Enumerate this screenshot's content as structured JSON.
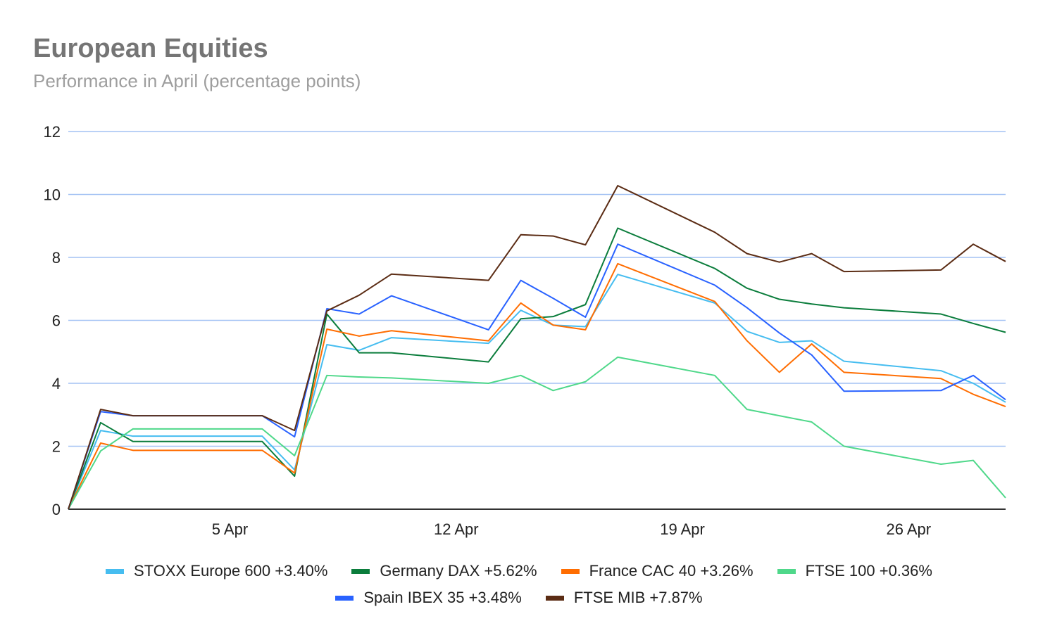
{
  "chart_data": {
    "type": "line",
    "title": "European Equities",
    "subtitle": "Performance in April (percentage points)",
    "xlabel": "",
    "ylabel": "",
    "ylim": [
      0,
      12
    ],
    "yticks": [
      0,
      2,
      4,
      6,
      8,
      10,
      12
    ],
    "grid": true,
    "legend_position": "bottom",
    "x_unit": "days since 31 Mar",
    "x": [
      0,
      1,
      2,
      6,
      7,
      8,
      9,
      10,
      13,
      14,
      15,
      16,
      17,
      20,
      21,
      22,
      23,
      24,
      27,
      28,
      29
    ],
    "xticks": [
      {
        "value": 5,
        "label": "5 Apr"
      },
      {
        "value": 12,
        "label": "12 Apr"
      },
      {
        "value": 19,
        "label": "19 Apr"
      },
      {
        "value": 26,
        "label": "26 Apr"
      }
    ],
    "series": [
      {
        "name": "STOXX Europe 600 +3.40%",
        "color": "#46bdf0",
        "values": [
          0,
          2.5,
          2.32,
          2.32,
          1.25,
          5.23,
          5.05,
          5.45,
          5.27,
          6.32,
          5.85,
          5.8,
          7.46,
          6.55,
          5.65,
          5.3,
          5.35,
          4.7,
          4.4,
          4.0,
          3.4
        ]
      },
      {
        "name": "Germany DAX +5.62%",
        "color": "#0b7d3c",
        "values": [
          0,
          2.75,
          2.15,
          2.15,
          1.05,
          6.2,
          4.97,
          4.97,
          4.68,
          6.05,
          6.12,
          6.5,
          8.93,
          7.65,
          7.02,
          6.67,
          6.52,
          6.4,
          6.2,
          5.9,
          5.62
        ]
      },
      {
        "name": "France CAC 40 +3.26%",
        "color": "#ff6d01",
        "values": [
          0,
          2.1,
          1.87,
          1.87,
          1.15,
          5.72,
          5.5,
          5.67,
          5.35,
          6.55,
          5.85,
          5.7,
          7.8,
          6.6,
          5.35,
          4.35,
          5.25,
          4.35,
          4.15,
          3.65,
          3.26
        ]
      },
      {
        "name": "FTSE 100 +0.36%",
        "color": "#4fd88a",
        "values": [
          0,
          1.85,
          2.55,
          2.55,
          1.7,
          4.25,
          4.2,
          4.17,
          4.0,
          4.25,
          3.77,
          4.05,
          4.83,
          4.25,
          3.17,
          2.97,
          2.77,
          2.0,
          1.43,
          1.55,
          0.36
        ]
      },
      {
        "name": "Spain IBEX 35 +3.48%",
        "color": "#2962ff",
        "values": [
          0,
          3.1,
          2.97,
          2.97,
          2.3,
          6.37,
          6.2,
          6.78,
          5.7,
          7.27,
          6.7,
          6.1,
          8.42,
          7.12,
          6.4,
          5.6,
          4.9,
          3.75,
          3.77,
          4.25,
          3.48
        ]
      },
      {
        "name": "FTSE MIB +7.87%",
        "color": "#5b2c14",
        "values": [
          0,
          3.17,
          2.97,
          2.97,
          2.5,
          6.3,
          6.8,
          7.47,
          7.27,
          8.72,
          8.68,
          8.4,
          10.28,
          8.8,
          8.12,
          7.85,
          8.12,
          7.55,
          7.6,
          8.42,
          7.87
        ]
      }
    ]
  }
}
